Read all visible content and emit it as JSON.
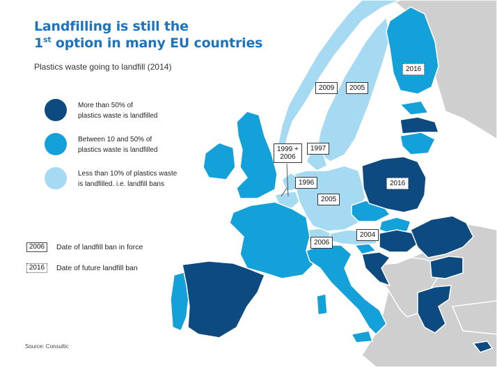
{
  "title": {
    "line1": "Landfilling is still the",
    "line2_prefix": "1",
    "line2_ordinal": "st",
    "line2_rest": " option in many EU countries"
  },
  "subtitle": "Plastics waste going to landfill (2014)",
  "colors": {
    "dark": "#0d4a7f",
    "medium": "#14a0d8",
    "light": "#a6daf3",
    "nonEU": "#cfcfcf",
    "sea": "#ffffff",
    "border": "#ffffff",
    "title": "#1e73be"
  },
  "legend": {
    "items": [
      {
        "line1": "More than 50% of",
        "line2": "plastics waste is landfilled",
        "color": "#0d4a7f"
      },
      {
        "line1": "Between 10 and 50% of",
        "line2": "plastics waste is landfilled",
        "color": "#14a0d8"
      },
      {
        "line1": "Less than 10% of plastics waste",
        "line2": "is landfilled. i.e. landfill bans",
        "color": "#a6daf3"
      }
    ],
    "key_solid_year": "2006",
    "key_solid_text": "Date of landfill ban in force",
    "key_dotted_year": "2016",
    "key_dotted_text": "Date of future landfill ban"
  },
  "year_labels": [
    {
      "text": "2016",
      "style": "dotted",
      "country": "Finland"
    },
    {
      "text": "2009",
      "style": "solid",
      "country": "Norway"
    },
    {
      "text": "2005",
      "style": "solid",
      "country": "Sweden"
    },
    {
      "text": "1997",
      "style": "solid",
      "country": "Denmark"
    },
    {
      "text": "1999 +",
      "text2": "2006",
      "style": "solid",
      "country": "Netherlands"
    },
    {
      "text": "1996",
      "style": "solid",
      "country": "Belgium"
    },
    {
      "text": "2005",
      "style": "solid",
      "country": "Germany"
    },
    {
      "text": "2016",
      "style": "dotted",
      "country": "Poland"
    },
    {
      "text": "2004",
      "style": "solid",
      "country": "Austria"
    },
    {
      "text": "2006",
      "style": "solid",
      "country": "Switzerland"
    }
  ],
  "source": "Source: Consultic"
}
